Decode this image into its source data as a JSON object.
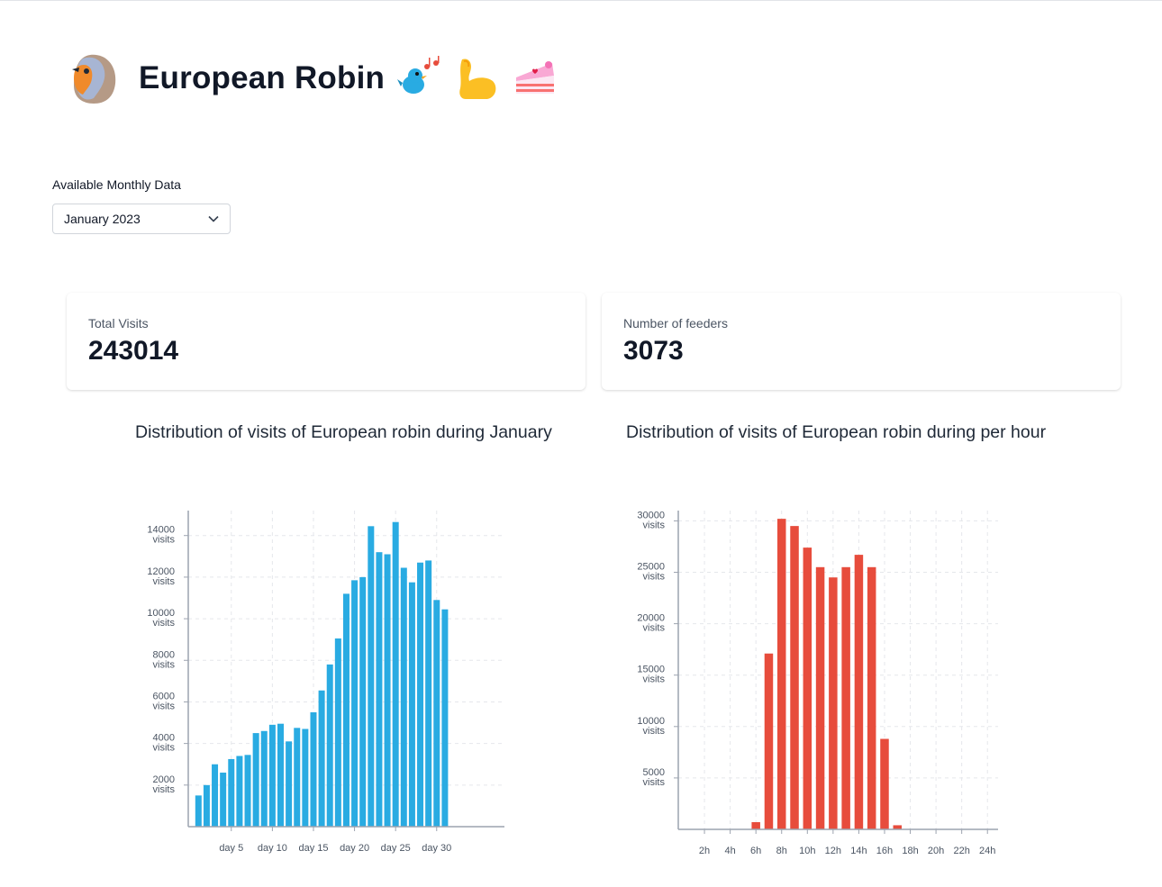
{
  "header": {
    "title": "European Robin",
    "logo_icon": "robin-bird-icon",
    "emojis": [
      "singing-bird-icon",
      "flexed-biceps-icon",
      "cake-slice-icon"
    ]
  },
  "filter": {
    "label": "Available Monthly Data",
    "selected": "January 2023"
  },
  "stats": {
    "total_visits_label": "Total Visits",
    "total_visits_value": "243014",
    "feeders_label": "Number of feeders",
    "feeders_value": "3073"
  },
  "chart_data": [
    {
      "type": "bar",
      "title": "Distribution of visits of European robin during January",
      "categories": [
        "day 1",
        "day 2",
        "day 3",
        "day 4",
        "day 5",
        "day 6",
        "day 7",
        "day 8",
        "day 9",
        "day 10",
        "day 11",
        "day 12",
        "day 13",
        "day 14",
        "day 15",
        "day 16",
        "day 17",
        "day 18",
        "day 19",
        "day 20",
        "day 21",
        "day 22",
        "day 23",
        "day 24",
        "day 25",
        "day 26",
        "day 27",
        "day 28",
        "day 29",
        "day 30",
        "day 31"
      ],
      "values": [
        1500,
        2000,
        3000,
        2600,
        3250,
        3400,
        3450,
        4500,
        4600,
        4900,
        4950,
        4100,
        4750,
        4700,
        5500,
        6550,
        7800,
        9050,
        11200,
        11850,
        12000,
        14450,
        13200,
        13100,
        14650,
        12450,
        11750,
        12700,
        12800,
        10900,
        10450
      ],
      "xticks": [
        "day 5",
        "day 10",
        "day 15",
        "day 20",
        "day 25",
        "day 30"
      ],
      "yticks": [
        2000,
        4000,
        6000,
        8000,
        10000,
        12000,
        14000
      ],
      "ylabel_unit": "visits",
      "ylim": [
        0,
        15200
      ],
      "color": "#29abe2"
    },
    {
      "type": "bar",
      "title": "Distribution of visits of European robin during per hour",
      "categories": [
        "0h",
        "1h",
        "2h",
        "3h",
        "4h",
        "5h",
        "6h",
        "7h",
        "8h",
        "9h",
        "10h",
        "11h",
        "12h",
        "13h",
        "14h",
        "15h",
        "16h",
        "17h",
        "18h",
        "19h",
        "20h",
        "21h",
        "22h",
        "23h",
        "24h"
      ],
      "values": [
        0,
        0,
        0,
        0,
        0,
        0,
        700,
        17100,
        30200,
        29500,
        27400,
        25500,
        24500,
        25500,
        26700,
        25500,
        8800,
        400,
        0,
        0,
        0,
        0,
        0,
        0,
        0
      ],
      "xticks": [
        "2h",
        "4h",
        "6h",
        "8h",
        "10h",
        "12h",
        "14h",
        "16h",
        "18h",
        "20h",
        "22h",
        "24h"
      ],
      "yticks": [
        5000,
        10000,
        15000,
        20000,
        25000,
        30000
      ],
      "ylabel_unit": "visits",
      "ylim": [
        0,
        31000
      ],
      "color": "#e74c3c"
    }
  ]
}
